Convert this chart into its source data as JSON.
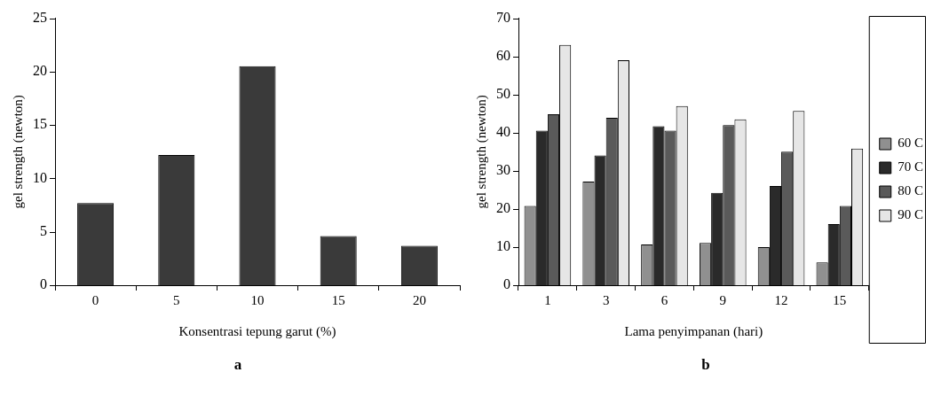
{
  "chart_data": [
    {
      "type": "bar",
      "categories": [
        "0",
        "5",
        "10",
        "15",
        "20"
      ],
      "xlabel": "Konsentrasi tepung garut (%)",
      "ylabel": "gel strength (newton)",
      "ylim": [
        0,
        25
      ],
      "yticks": [
        0,
        5,
        10,
        15,
        20,
        25
      ],
      "grid": false,
      "legend": false,
      "annotations": [
        "a"
      ],
      "series": [
        {
          "color": "#3a3a3a",
          "values": [
            7.7,
            12.2,
            20.5,
            4.6,
            3.7
          ]
        }
      ]
    },
    {
      "type": "bar",
      "categories": [
        "1",
        "3",
        "6",
        "9",
        "12",
        "15"
      ],
      "xlabel": "Lama penyimpanan (hari)",
      "ylabel": "gel strength (newton)",
      "ylim": [
        0,
        70
      ],
      "yticks": [
        0,
        10,
        20,
        30,
        40,
        50,
        60,
        70
      ],
      "grid": false,
      "legend": "right",
      "annotations": [
        "b"
      ],
      "series": [
        {
          "name": "60 C",
          "color": "#909090",
          "values": [
            20.8,
            27.2,
            10.7,
            11.1,
            10,
            6
          ]
        },
        {
          "name": "70 C",
          "color": "#2a2a2a",
          "values": [
            40.5,
            34,
            41.7,
            24.2,
            26,
            16
          ]
        },
        {
          "name": "80 C",
          "color": "#5a5a5a",
          "values": [
            44.8,
            43.9,
            40.5,
            42,
            35,
            20.8
          ]
        },
        {
          "name": "90 C",
          "color": "#e6e6e6",
          "values": [
            63,
            59,
            47,
            43.5,
            45.7,
            35.8
          ]
        }
      ]
    }
  ]
}
